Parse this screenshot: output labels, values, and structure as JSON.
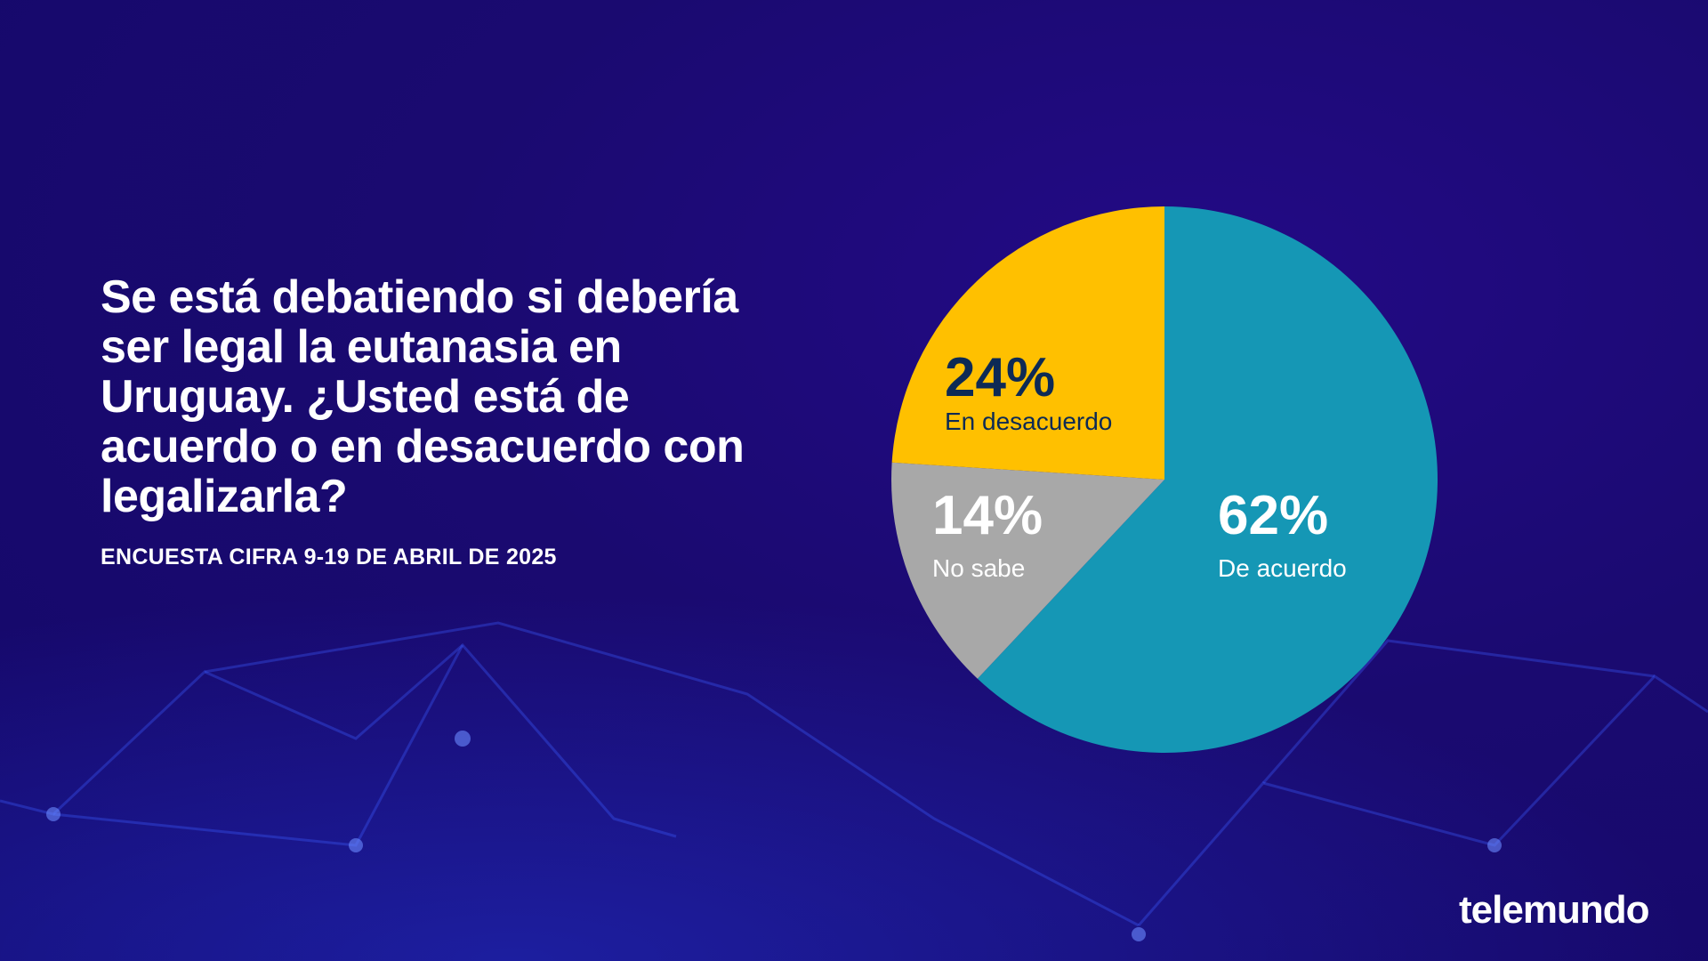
{
  "title": "Se está debatiendo si debería ser legal la eutanasia en Uruguay. ¿Usted está de acuerdo o en desacuerdo con legalizarla?",
  "source": "ENCUESTA CIFRA 9-19 DE ABRIL DE 2025",
  "logo": "telemundo",
  "chart_data": {
    "type": "pie",
    "title": "Se está debatiendo si debería ser legal la eutanasia en Uruguay. ¿Usted está de acuerdo o en desacuerdo con legalizarla?",
    "start": "top, clockwise",
    "slices": [
      {
        "label": "De acuerdo",
        "value": 62,
        "display": "62%",
        "color": "#1597b5",
        "text_color": "#ffffff"
      },
      {
        "label": "No sabe",
        "value": 14,
        "display": "14%",
        "color": "#a8a8a8",
        "text_color": "#ffffff"
      },
      {
        "label": "En desacuerdo",
        "value": 24,
        "display": "24%",
        "color": "#ffc000",
        "text_color": "#0d2a55"
      }
    ]
  }
}
